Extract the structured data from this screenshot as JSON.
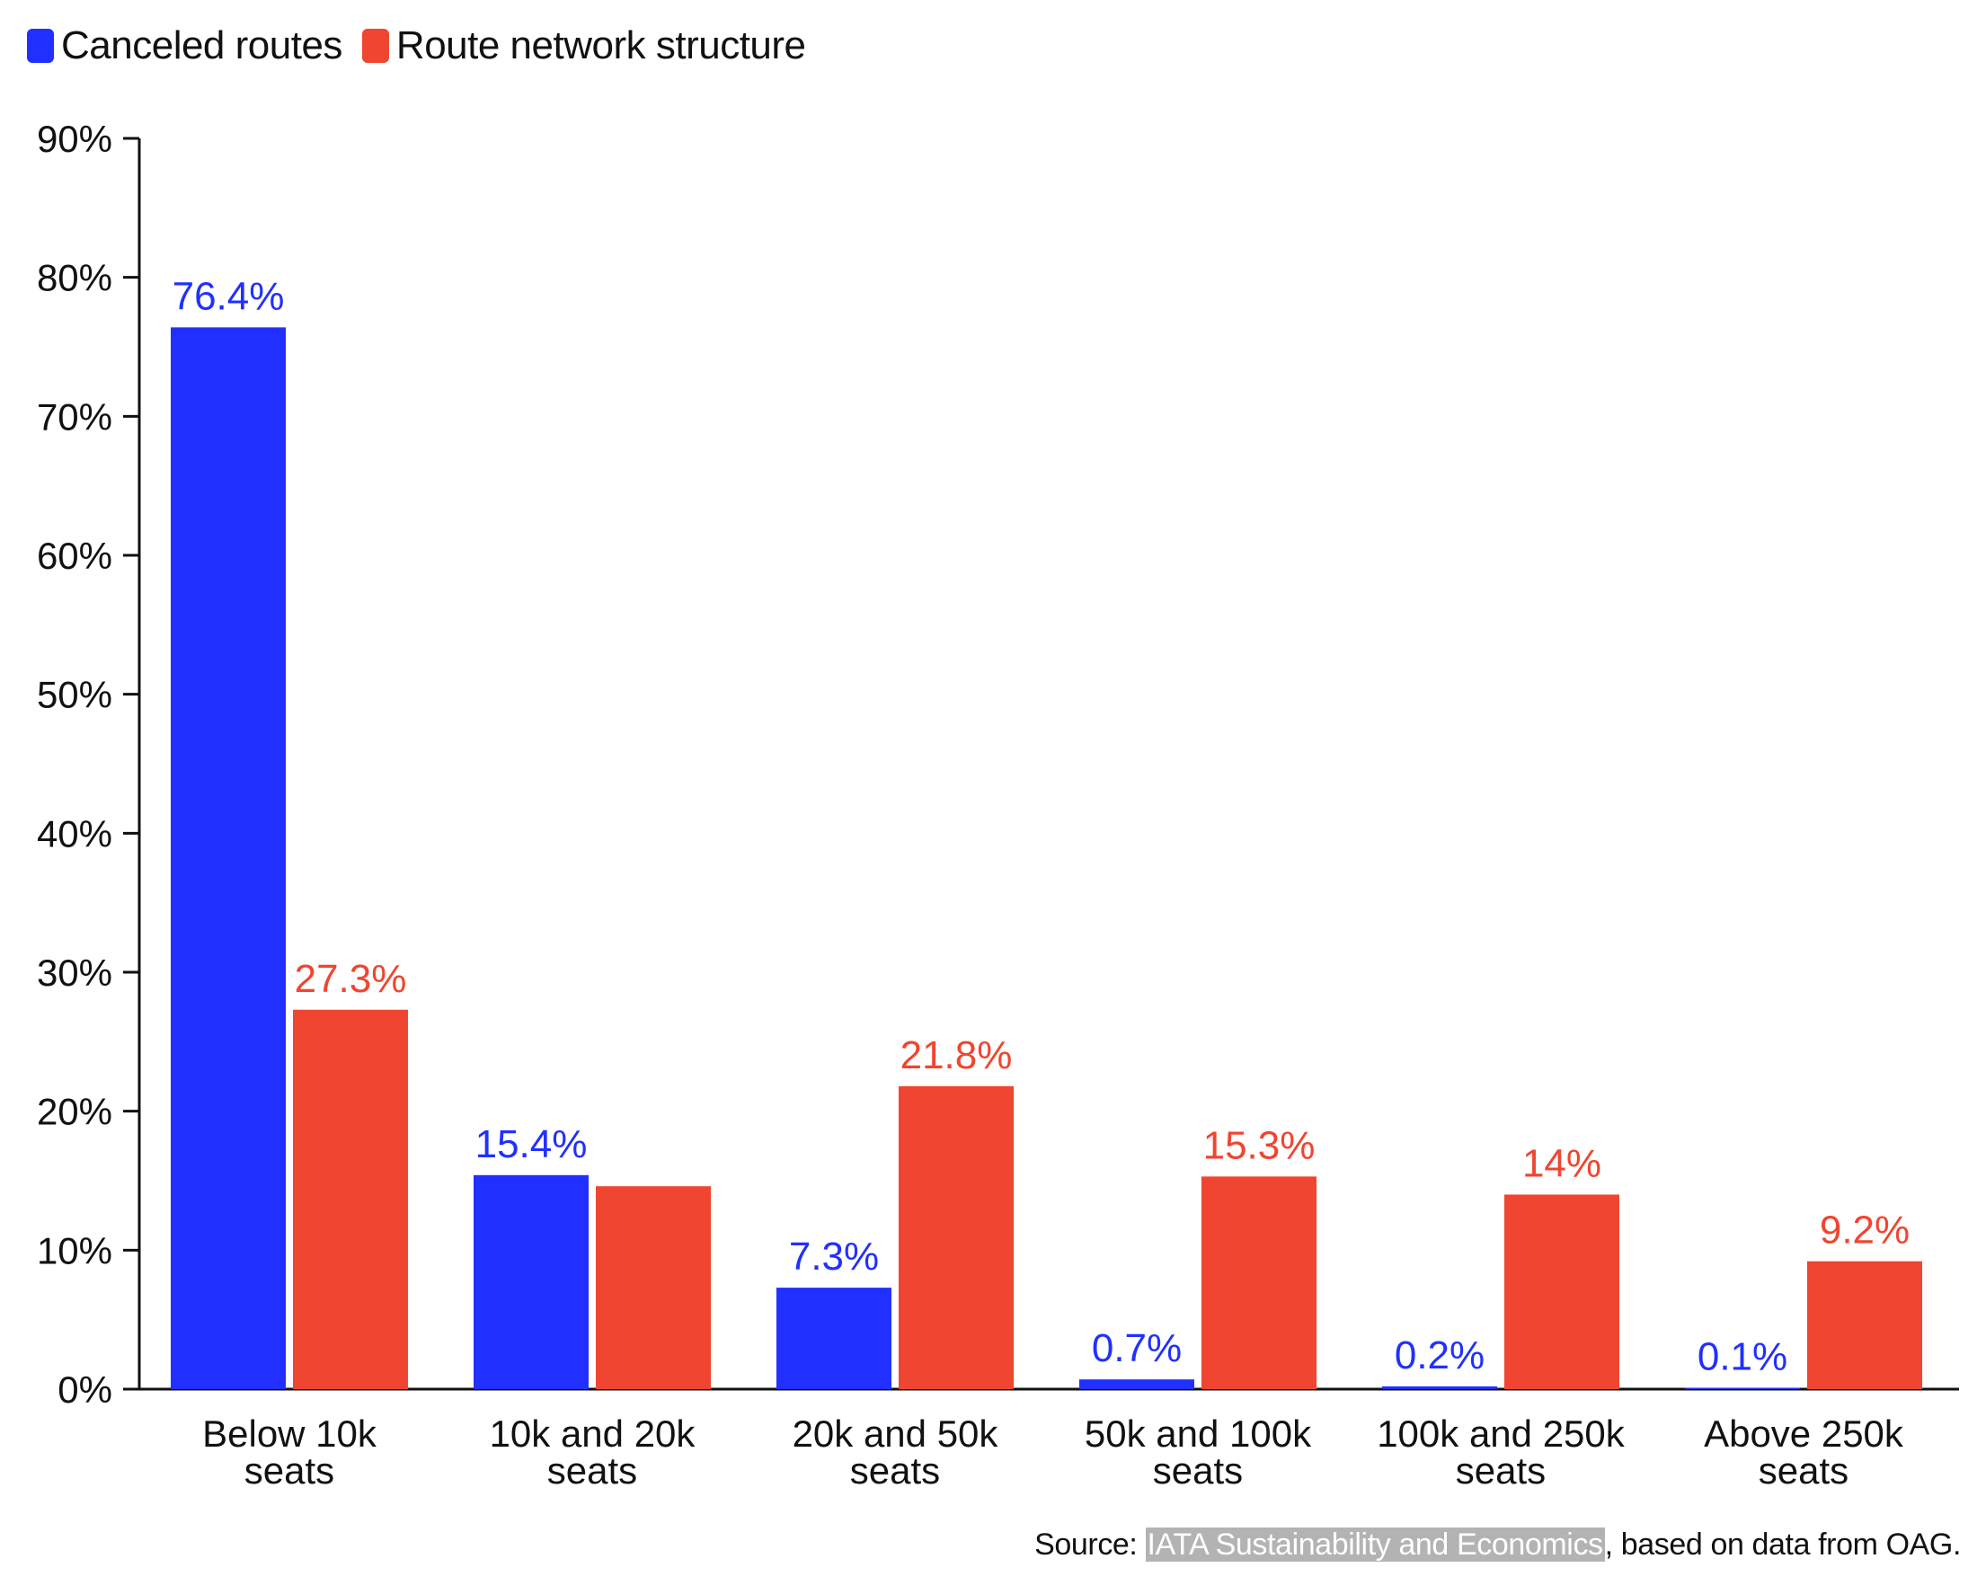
{
  "chart_data": {
    "type": "bar",
    "categories": [
      [
        "Below 10k",
        "seats"
      ],
      [
        "10k and 20k",
        "seats"
      ],
      [
        "20k and 50k",
        "seats"
      ],
      [
        "50k and 100k",
        "seats"
      ],
      [
        "100k and 250k",
        "seats"
      ],
      [
        "Above 250k",
        "seats"
      ]
    ],
    "series": [
      {
        "name": "Canceled routes",
        "color": "#2130ff",
        "values": [
          76.4,
          15.4,
          7.3,
          0.7,
          0.2,
          0.1
        ],
        "labels": [
          "76.4%",
          "15.4%",
          "7.3%",
          "0.7%",
          "0.2%",
          "0.1%"
        ]
      },
      {
        "name": "Route network structure",
        "color": "#f04530",
        "values": [
          27.3,
          14.6,
          21.8,
          15.3,
          14,
          9.2
        ],
        "labels": [
          "27.3%",
          "",
          "21.8%",
          "15.3%",
          "14%",
          "9.2%"
        ]
      }
    ],
    "ylim": [
      0,
      90
    ],
    "yticks": [
      0,
      10,
      20,
      30,
      40,
      50,
      60,
      70,
      80,
      90
    ],
    "ytick_labels": [
      "0%",
      "10%",
      "20%",
      "30%",
      "40%",
      "50%",
      "60%",
      "70%",
      "80%",
      "90%"
    ],
    "grid": false,
    "legend_position": "top-left",
    "xlabel": "",
    "ylabel": "",
    "title": ""
  },
  "legend": {
    "items": [
      {
        "label": "Canceled routes",
        "color": "#2130ff"
      },
      {
        "label": "Route network structure",
        "color": "#f04530"
      }
    ]
  },
  "source": {
    "prefix": "Source: ",
    "highlight": "IATA Sustainability and Economics",
    "suffix": ", based on data from OAG."
  }
}
